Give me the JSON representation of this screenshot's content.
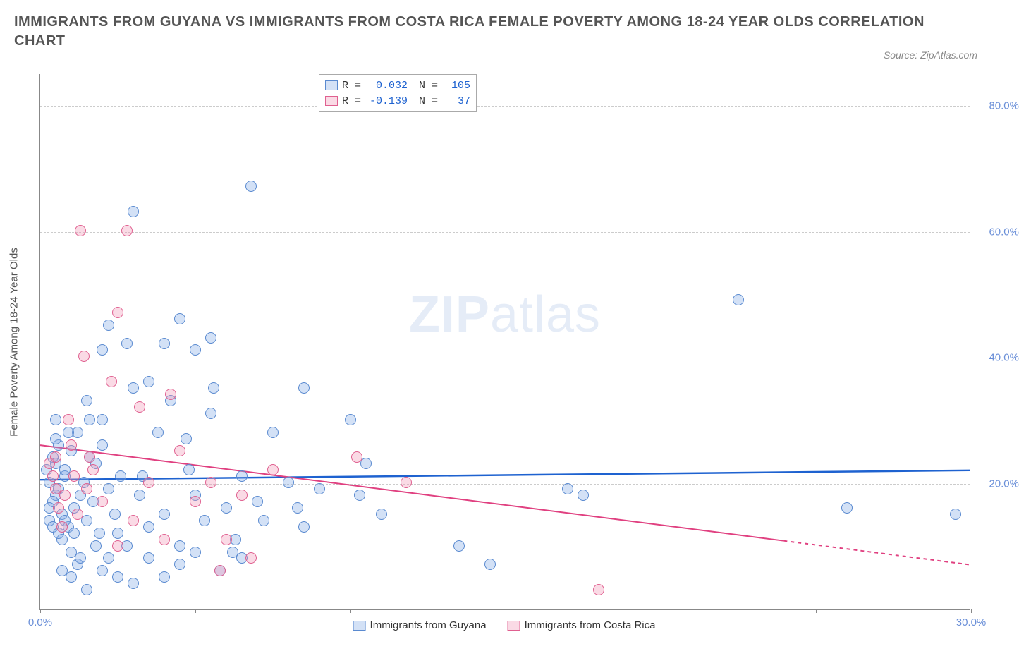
{
  "title_line1": "IMMIGRANTS FROM GUYANA VS IMMIGRANTS FROM COSTA RICA FEMALE POVERTY AMONG 18-24 YEAR OLDS CORRELATION",
  "title_line2": "CHART",
  "source": "Source: ZipAtlas.com",
  "ylabel": "Female Poverty Among 18-24 Year Olds",
  "watermark_bold": "ZIP",
  "watermark_rest": "atlas",
  "chart": {
    "type": "scatter",
    "xlim": [
      0,
      30
    ],
    "ylim": [
      0,
      85
    ],
    "x_ticks": [
      0,
      5,
      10,
      15,
      20,
      25,
      30
    ],
    "x_tick_labels": [
      "0.0%",
      "",
      "",
      "",
      "",
      "",
      "30.0%"
    ],
    "y_gridlines": [
      20,
      40,
      60,
      80
    ],
    "y_tick_labels": [
      "20.0%",
      "40.0%",
      "60.0%",
      "80.0%"
    ],
    "background_color": "#ffffff",
    "grid_color": "#cccccc",
    "series": [
      {
        "name": "Immigrants from Guyana",
        "fill": "rgba(130,170,230,0.35)",
        "stroke": "#5a8ad0",
        "marker_radius": 8,
        "R_label": "R =",
        "R": "0.032",
        "N_label": "N =",
        "N": "105",
        "trend": {
          "y1": 20.5,
          "y2": 22.0,
          "color": "#1e62d0",
          "width": 2.5,
          "x1": 0,
          "x2": 30
        },
        "points": [
          [
            0.2,
            22
          ],
          [
            0.3,
            20
          ],
          [
            0.4,
            24
          ],
          [
            0.5,
            18
          ],
          [
            0.3,
            14
          ],
          [
            0.6,
            26
          ],
          [
            0.7,
            15
          ],
          [
            0.8,
            21
          ],
          [
            0.4,
            17
          ],
          [
            0.5,
            23
          ],
          [
            0.6,
            19
          ],
          [
            0.9,
            13
          ],
          [
            1.0,
            25
          ],
          [
            1.1,
            16
          ],
          [
            1.2,
            28
          ],
          [
            0.7,
            11
          ],
          [
            0.8,
            22
          ],
          [
            1.3,
            18
          ],
          [
            1.4,
            20
          ],
          [
            1.5,
            14
          ],
          [
            1.6,
            24
          ],
          [
            1.0,
            9
          ],
          [
            1.7,
            17
          ],
          [
            1.8,
            23
          ],
          [
            1.9,
            12
          ],
          [
            2.0,
            26
          ],
          [
            1.2,
            7
          ],
          [
            2.2,
            19
          ],
          [
            2.4,
            15
          ],
          [
            2.6,
            21
          ],
          [
            2.8,
            10
          ],
          [
            3.0,
            35
          ],
          [
            2.0,
            41
          ],
          [
            1.6,
            30
          ],
          [
            2.2,
            45
          ],
          [
            3.2,
            18
          ],
          [
            3.5,
            13
          ],
          [
            3.8,
            28
          ],
          [
            4.0,
            15
          ],
          [
            4.2,
            33
          ],
          [
            4.5,
            10
          ],
          [
            4.8,
            22
          ],
          [
            5.0,
            18
          ],
          [
            3.0,
            63
          ],
          [
            4.5,
            46
          ],
          [
            5.3,
            14
          ],
          [
            5.6,
            35
          ],
          [
            6.0,
            16
          ],
          [
            6.3,
            11
          ],
          [
            6.5,
            21
          ],
          [
            7.0,
            17
          ],
          [
            7.2,
            14
          ],
          [
            7.5,
            28
          ],
          [
            8.0,
            20
          ],
          [
            8.3,
            16
          ],
          [
            8.5,
            13
          ],
          [
            9.0,
            19
          ],
          [
            6.8,
            67
          ],
          [
            5.0,
            41
          ],
          [
            5.5,
            43
          ],
          [
            2.5,
            5
          ],
          [
            3.0,
            4
          ],
          [
            1.5,
            3
          ],
          [
            2.0,
            6
          ],
          [
            3.5,
            8
          ],
          [
            4.0,
            5
          ],
          [
            4.5,
            7
          ],
          [
            5.0,
            9
          ],
          [
            5.8,
            6
          ],
          [
            6.5,
            8
          ],
          [
            10.0,
            30
          ],
          [
            10.5,
            23
          ],
          [
            10.3,
            18
          ],
          [
            11.0,
            15
          ],
          [
            13.5,
            10
          ],
          [
            14.5,
            7
          ],
          [
            17.0,
            19
          ],
          [
            17.5,
            18
          ],
          [
            22.5,
            49
          ],
          [
            26.0,
            16
          ],
          [
            29.5,
            15
          ],
          [
            8.5,
            35
          ],
          [
            3.5,
            36
          ],
          [
            2.8,
            42
          ],
          [
            1.5,
            33
          ],
          [
            2.0,
            30
          ],
          [
            0.9,
            28
          ],
          [
            0.5,
            30
          ],
          [
            0.3,
            16
          ],
          [
            1.8,
            10
          ],
          [
            2.5,
            12
          ],
          [
            3.3,
            21
          ],
          [
            4.7,
            27
          ],
          [
            4.0,
            42
          ],
          [
            5.5,
            31
          ],
          [
            6.2,
            9
          ],
          [
            1.0,
            5
          ],
          [
            1.3,
            8
          ],
          [
            0.7,
            6
          ],
          [
            2.2,
            8
          ],
          [
            0.4,
            13
          ],
          [
            0.6,
            12
          ],
          [
            0.8,
            14
          ],
          [
            0.5,
            27
          ],
          [
            1.1,
            12
          ]
        ]
      },
      {
        "name": "Immigrants from Costa Rica",
        "fill": "rgba(240,150,180,0.35)",
        "stroke": "#e06090",
        "marker_radius": 8,
        "R_label": "R =",
        "R": "-0.139",
        "N_label": "N =",
        "N": "37",
        "trend": {
          "y1": 26.0,
          "y2": 7.0,
          "color": "#e04080",
          "width": 2,
          "x1": 0,
          "x2": 30,
          "solid_until": 24
        },
        "points": [
          [
            0.3,
            23
          ],
          [
            0.4,
            21
          ],
          [
            0.5,
            24
          ],
          [
            0.8,
            18
          ],
          [
            1.0,
            26
          ],
          [
            1.2,
            15
          ],
          [
            1.5,
            19
          ],
          [
            1.7,
            22
          ],
          [
            1.4,
            40
          ],
          [
            0.9,
            30
          ],
          [
            2.0,
            17
          ],
          [
            2.3,
            36
          ],
          [
            2.8,
            60
          ],
          [
            1.3,
            60
          ],
          [
            2.5,
            47
          ],
          [
            3.0,
            14
          ],
          [
            3.5,
            20
          ],
          [
            4.0,
            11
          ],
          [
            2.5,
            10
          ],
          [
            3.2,
            32
          ],
          [
            4.2,
            34
          ],
          [
            4.5,
            25
          ],
          [
            5.0,
            17
          ],
          [
            5.5,
            20
          ],
          [
            6.0,
            11
          ],
          [
            6.5,
            18
          ],
          [
            5.8,
            6
          ],
          [
            6.8,
            8
          ],
          [
            7.5,
            22
          ],
          [
            10.2,
            24
          ],
          [
            11.8,
            20
          ],
          [
            18.0,
            3
          ],
          [
            0.6,
            16
          ],
          [
            0.7,
            13
          ],
          [
            0.5,
            19
          ],
          [
            1.1,
            21
          ],
          [
            1.6,
            24
          ]
        ]
      }
    ]
  }
}
